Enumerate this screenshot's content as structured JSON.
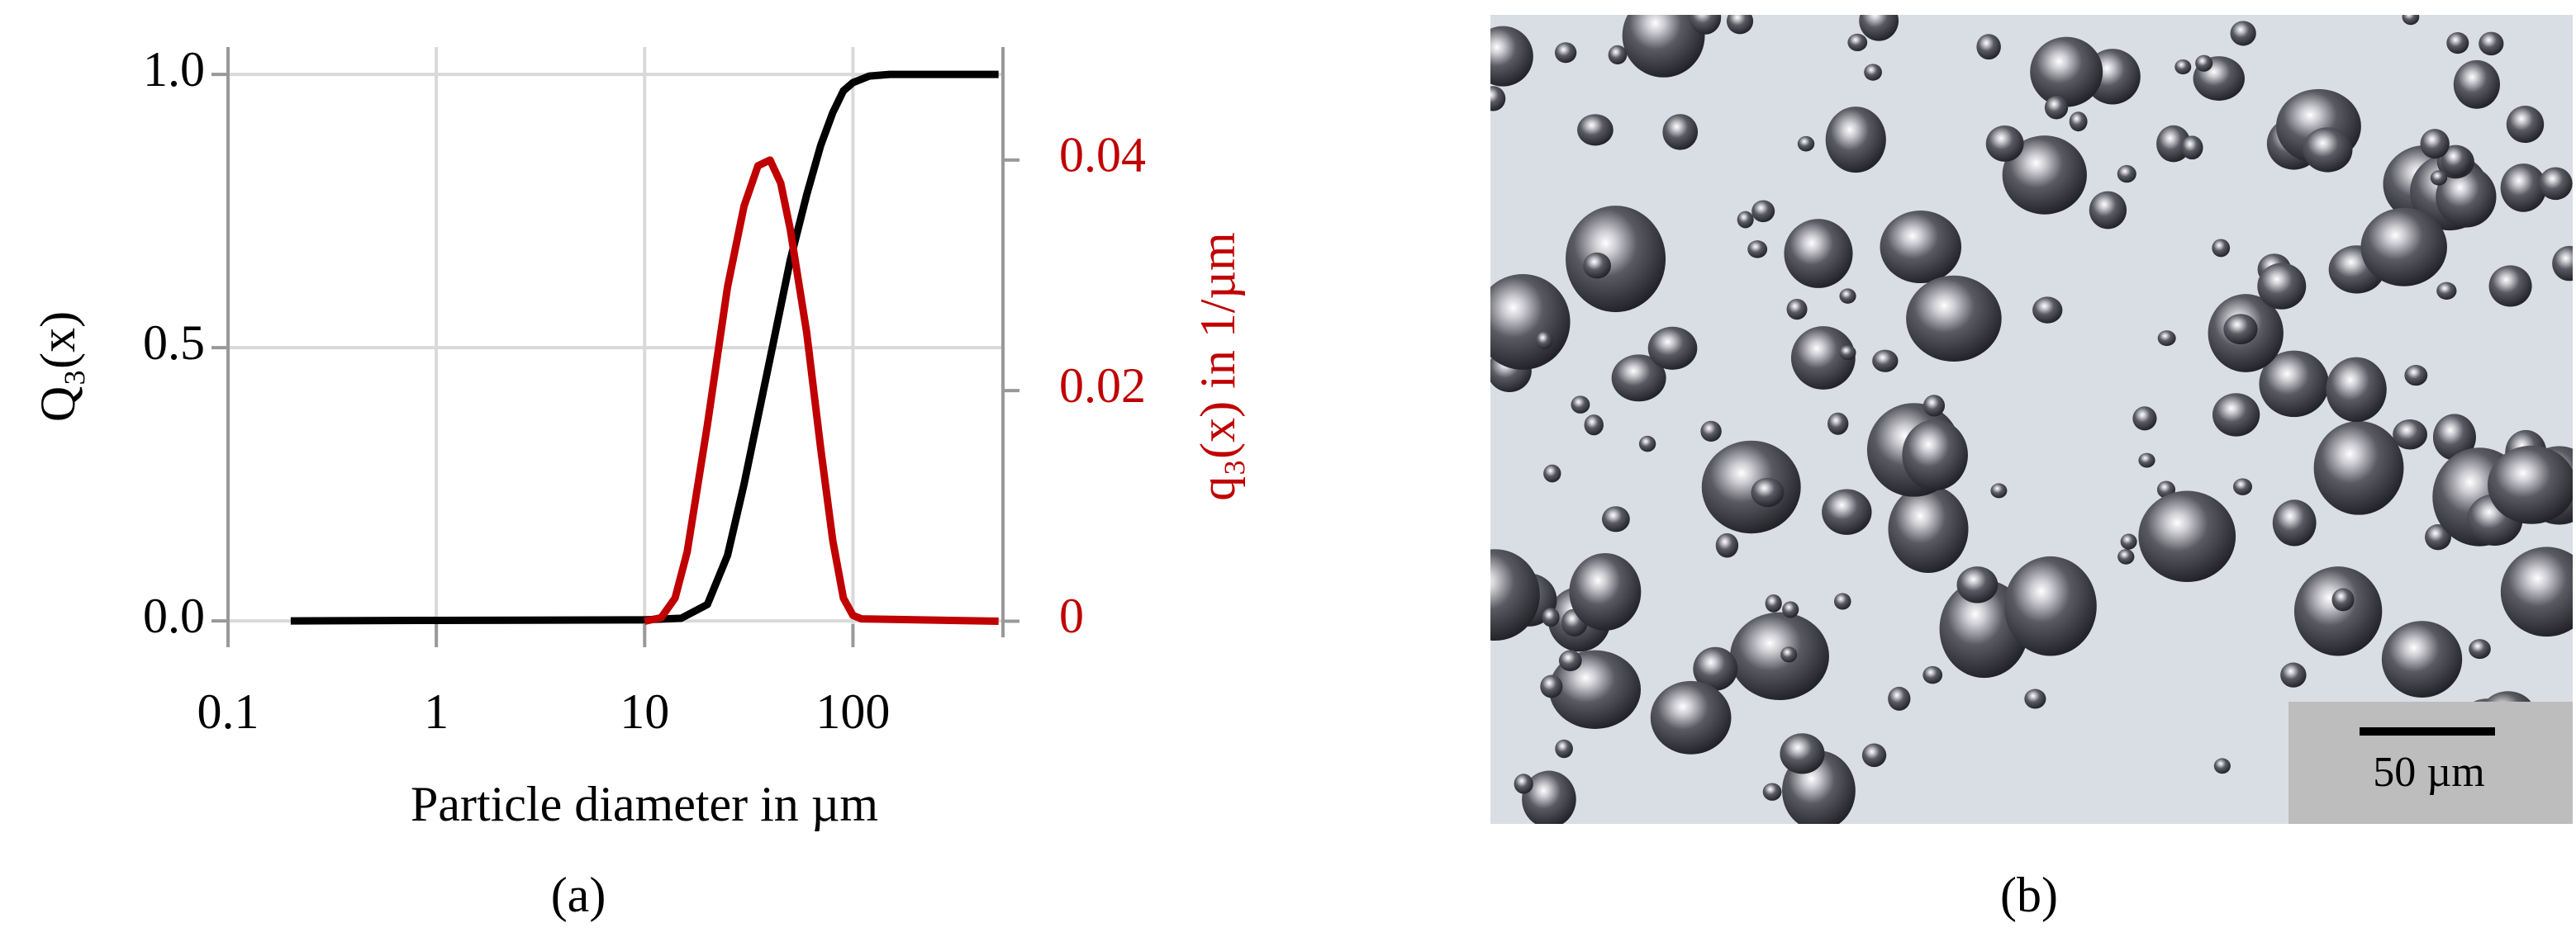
{
  "chart_data": {
    "type": "line",
    "x_label": "Particle diameter in µm",
    "y_label": "Q₃(x)",
    "y2_label": "q₃(x) in 1/µm",
    "panel_label": "(a)",
    "log_x": true,
    "grid": true,
    "xlim": [
      0.1,
      525
    ],
    "xticks": [
      0.1,
      1,
      10,
      100
    ],
    "ylim": [
      -0.03,
      1.05
    ],
    "yticks": [
      {
        "value": 0,
        "label": "0.0"
      },
      0.5,
      {
        "value": 1,
        "label": "1.0"
      }
    ],
    "y2lim": [
      -0.0014,
      0.0498
    ],
    "y2ticks": [
      0,
      0.02,
      0.04
    ],
    "y2color": "#c00000",
    "series": [
      {
        "color": "#000000",
        "x": [
          0.2,
          1,
          10,
          15,
          20,
          25,
          30,
          40,
          50,
          60,
          70,
          80,
          90,
          100,
          120,
          150,
          500
        ],
        "values": [
          0,
          0.001,
          0.002,
          0.005,
          0.03,
          0.12,
          0.25,
          0.48,
          0.66,
          0.78,
          0.87,
          0.93,
          0.97,
          0.985,
          0.997,
          1.0,
          1.0
        ]
      },
      {
        "color": "#c00000",
        "axis": "y2",
        "x": [
          10,
          12,
          14,
          16,
          20,
          25,
          30,
          35,
          40,
          45,
          50,
          60,
          70,
          80,
          90,
          100,
          110,
          500
        ],
        "values": [
          0,
          0.0003,
          0.002,
          0.006,
          0.017,
          0.029,
          0.036,
          0.0395,
          0.04,
          0.038,
          0.034,
          0.025,
          0.015,
          0.007,
          0.002,
          0.0005,
          0.0002,
          0
        ]
      }
    ]
  },
  "image": {
    "scale_bar": "50 µm",
    "panel_label": "(b)"
  }
}
